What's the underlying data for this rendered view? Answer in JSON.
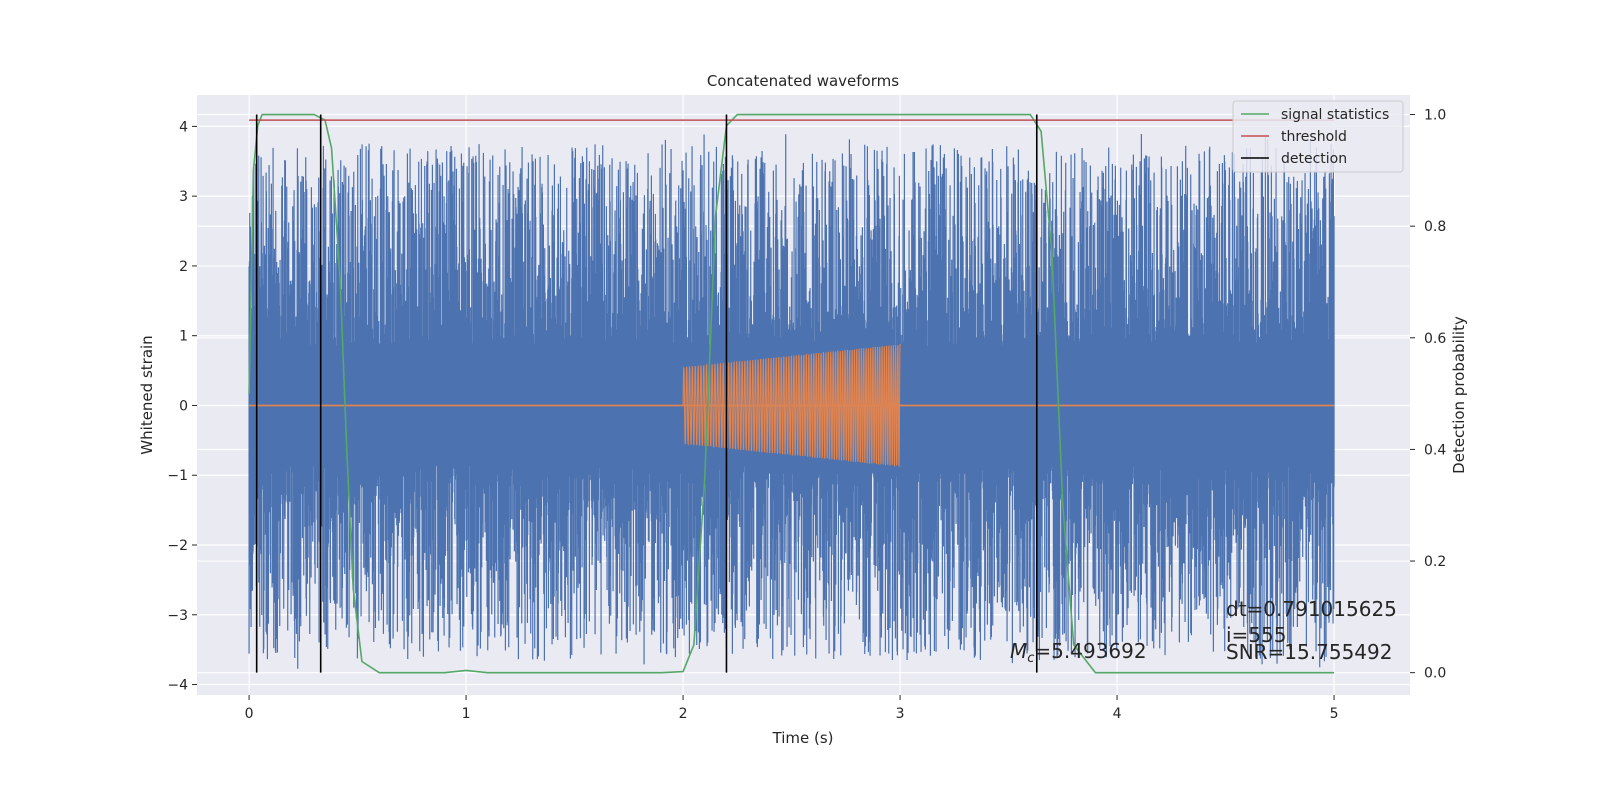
{
  "chart_data": {
    "type": "line",
    "title": "Concatenated waveforms",
    "xlabel": "Time (s)",
    "ylabel": "Whitened strain",
    "y2label": "Detection probability",
    "xlim": [
      -0.24,
      5.35
    ],
    "ylim": [
      -4.15,
      4.45
    ],
    "y2lim": [
      -0.04,
      1.035
    ],
    "xticks": [
      0,
      1,
      2,
      3,
      4,
      5
    ],
    "xtick_labels": [
      "0",
      "1",
      "2",
      "3",
      "4",
      "5"
    ],
    "yticks": [
      -4,
      -3,
      -2,
      -1,
      0,
      1,
      2,
      3,
      4
    ],
    "ytick_labels": [
      "−4",
      "−3",
      "−2",
      "−1",
      "0",
      "1",
      "2",
      "3",
      "4"
    ],
    "y2ticks": [
      0.0,
      0.2,
      0.4,
      0.6,
      0.8,
      1.0
    ],
    "y2tick_labels": [
      "0.0",
      "0.2",
      "0.4",
      "0.6",
      "0.8",
      "1.0"
    ],
    "grid": true,
    "legend_position": "top-right",
    "legend": [
      "signal statistics",
      "threshold",
      "detection"
    ],
    "series": [
      {
        "name": "",
        "axis": "left",
        "color": "#4c72b0",
        "kind": "noise",
        "x_range": [
          0,
          5
        ],
        "envelope_core": 0.85,
        "peak_max": 3.9,
        "trough_min": -3.8
      },
      {
        "name": "",
        "axis": "left",
        "color": "#dd8452",
        "kind": "chirp",
        "baseline": 0,
        "x_range": [
          0,
          5
        ],
        "chirp_x_range": [
          2.0,
          3.0
        ],
        "amplitude_start": 0.55,
        "amplitude_end": 0.88,
        "cycles": 75
      },
      {
        "name": "signal statistics",
        "axis": "right",
        "color": "#55a868",
        "x": [
          0,
          0.02,
          0.04,
          0.06,
          0.1,
          0.3,
          0.35,
          0.38,
          0.42,
          0.45,
          0.48,
          0.52,
          0.6,
          0.9,
          1.0,
          1.1,
          1.9,
          2.0,
          2.05,
          2.1,
          2.15,
          2.2,
          2.25,
          2.4,
          3.6,
          3.65,
          3.7,
          3.75,
          3.8,
          3.9,
          5.0
        ],
        "y": [
          0.5,
          0.9,
          0.98,
          1.0,
          1.0,
          1.0,
          0.99,
          0.94,
          0.7,
          0.4,
          0.15,
          0.02,
          0.0,
          0.0,
          0.004,
          0.0,
          0.0,
          0.002,
          0.05,
          0.35,
          0.82,
          0.98,
          1.0,
          1.0,
          1.0,
          0.97,
          0.75,
          0.3,
          0.05,
          0.0,
          0.0
        ]
      },
      {
        "name": "threshold",
        "axis": "right",
        "color": "#c44e52",
        "x": [
          0,
          5
        ],
        "y": [
          0.99,
          0.99
        ]
      }
    ],
    "detections": {
      "name": "detection",
      "color": "#000000",
      "x": [
        0.035,
        0.33,
        2.2,
        3.63
      ],
      "y2_range": [
        0,
        1.0
      ]
    },
    "annotations": {
      "dt": "dt=0.791015625",
      "i": " i=555",
      "mc_symbol": "M",
      "mc_sub": "c",
      "mc_value": "=5.493692",
      "snr": "SNR=15.755492"
    }
  }
}
